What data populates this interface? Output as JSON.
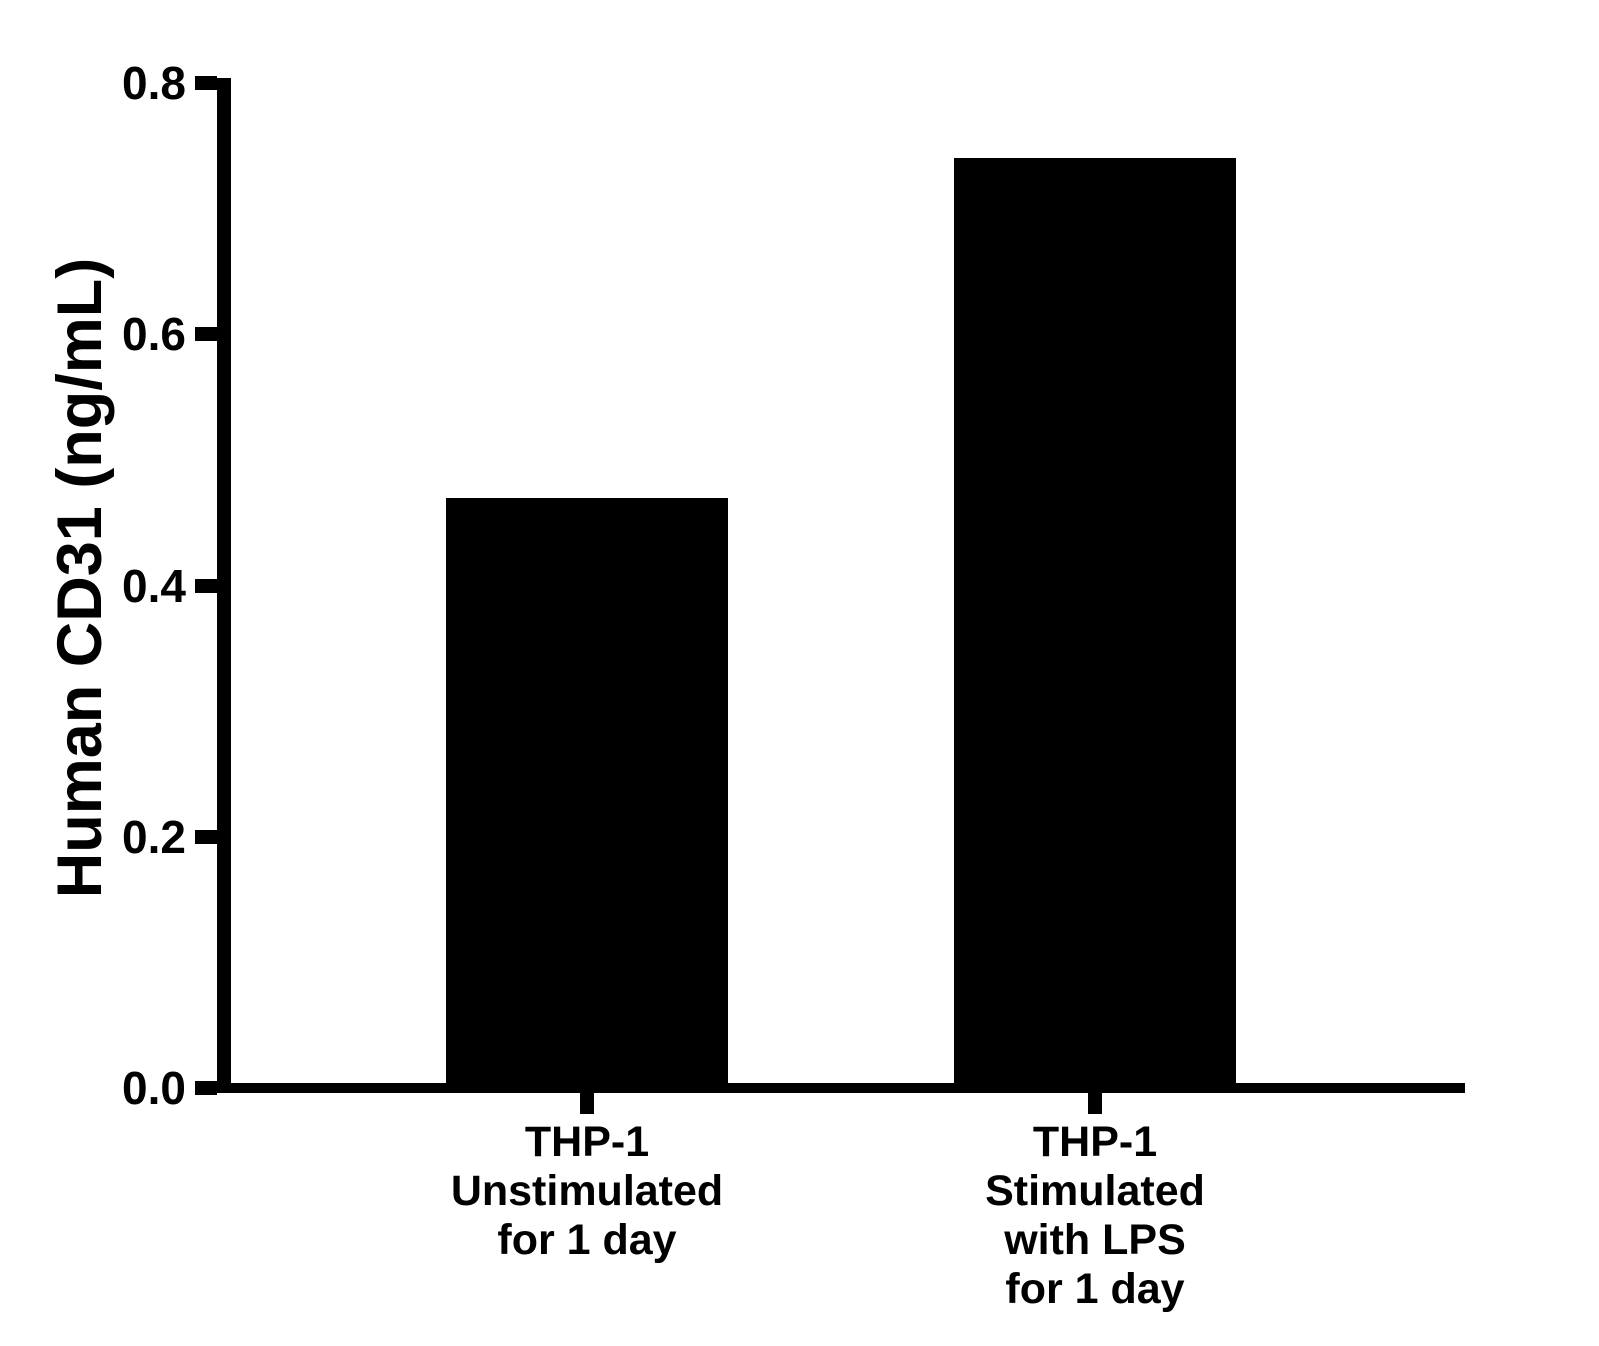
{
  "chart_data": {
    "type": "bar",
    "title": "",
    "xlabel": "",
    "ylabel": "Human CD31 (ng/mL)",
    "categories": [
      "THP-1\nUnstimulated\nfor 1 day",
      "THP-1\nStimulated\nwith LPS\nfor 1 day"
    ],
    "values": [
      0.47,
      0.74
    ],
    "unit": "ng/mL",
    "ylim": [
      0.0,
      0.8
    ],
    "yticks": [
      0.0,
      0.2,
      0.4,
      0.6,
      0.8
    ],
    "ytick_labels": [
      "0.0",
      "0.2",
      "0.4",
      "0.6",
      "0.8"
    ],
    "bar_color": "#000000",
    "axis_color": "#000000",
    "background_color": "#ffffff",
    "grid": false,
    "legend": null
  }
}
